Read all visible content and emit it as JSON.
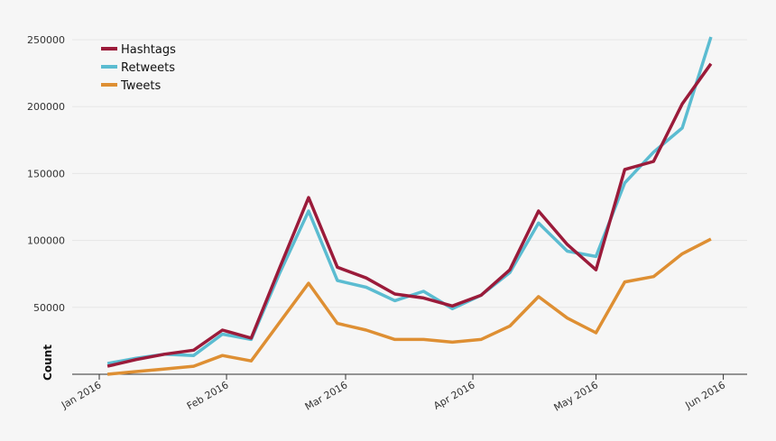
{
  "chart_data": {
    "type": "line",
    "title": "",
    "xlabel": "",
    "ylabel": "Count",
    "ylim": [
      0,
      250000
    ],
    "y_ticks": [
      {
        "value": 50000,
        "label": "50000"
      },
      {
        "value": 100000,
        "label": "100000"
      },
      {
        "value": 150000,
        "label": "150000"
      },
      {
        "value": 200000,
        "label": "200000"
      },
      {
        "value": 250000,
        "label": "250000"
      }
    ],
    "x_ticks": [
      {
        "day": 0,
        "label": "Jan 2016"
      },
      {
        "day": 31,
        "label": "Feb 2016"
      },
      {
        "day": 60,
        "label": "Mar 2016"
      },
      {
        "day": 91,
        "label": "Apr 2016"
      },
      {
        "day": 121,
        "label": "May 2016"
      },
      {
        "day": 152,
        "label": "Jun 2016"
      }
    ],
    "x": [
      "2016-01-03",
      "2016-01-10",
      "2016-01-17",
      "2016-01-24",
      "2016-01-31",
      "2016-02-07",
      "2016-02-14",
      "2016-02-21",
      "2016-02-28",
      "2016-03-06",
      "2016-03-13",
      "2016-03-20",
      "2016-03-27",
      "2016-04-03",
      "2016-04-10",
      "2016-04-17",
      "2016-04-24",
      "2016-05-01",
      "2016-05-08",
      "2016-05-15",
      "2016-05-22",
      "2016-05-29"
    ],
    "x_days": [
      2,
      9,
      16,
      23,
      30,
      37,
      44,
      51,
      58,
      65,
      72,
      79,
      86,
      93,
      100,
      107,
      114,
      121,
      128,
      135,
      142,
      149
    ],
    "legend_position": "top-left",
    "series": [
      {
        "name": "Hashtags",
        "color": "#9b1b3a",
        "values": [
          6000,
          11000,
          15000,
          18000,
          33000,
          27000,
          80000,
          132000,
          80000,
          72000,
          60000,
          57000,
          51000,
          59000,
          78000,
          122000,
          97000,
          78000,
          153000,
          159000,
          202000,
          232000
        ]
      },
      {
        "name": "Retweets",
        "color": "#5bbcd1",
        "values": [
          8000,
          12000,
          15000,
          14000,
          30000,
          26000,
          76000,
          122000,
          70000,
          65000,
          55000,
          62000,
          49000,
          59000,
          76000,
          113000,
          92000,
          88000,
          143000,
          166000,
          184000,
          252000
        ]
      },
      {
        "name": "Tweets",
        "color": "#de8f33",
        "values": [
          0,
          2000,
          4000,
          6000,
          14000,
          10000,
          39000,
          68000,
          38000,
          33000,
          26000,
          26000,
          24000,
          26000,
          36000,
          58000,
          42000,
          31000,
          69000,
          73000,
          90000,
          101000
        ]
      }
    ]
  }
}
